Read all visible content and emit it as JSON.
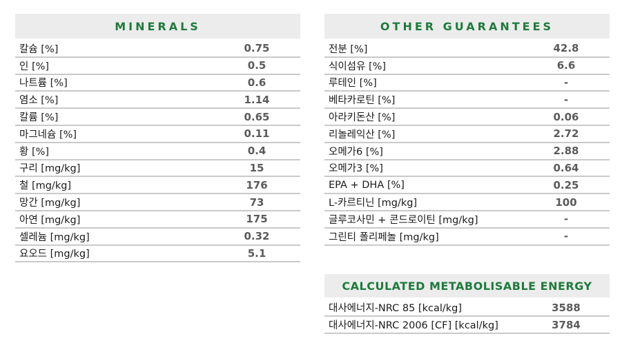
{
  "minerals": {
    "title": "MINERALS",
    "rows": [
      {
        "label": "칼슘 [%]",
        "value": "0.75"
      },
      {
        "label": "인 [%]",
        "value": "0.5"
      },
      {
        "label": "나트륨 [%]",
        "value": "0.6"
      },
      {
        "label": "염소 [%]",
        "value": "1.14"
      },
      {
        "label": "칼륨 [%]",
        "value": "0.65"
      },
      {
        "label": "마그네슘 [%]",
        "value": "0.11"
      },
      {
        "label": "황 [%]",
        "value": "0.4"
      },
      {
        "label": "구리 [mg/kg]",
        "value": "15"
      },
      {
        "label": "철 [mg/kg]",
        "value": "176"
      },
      {
        "label": "망간 [mg/kg]",
        "value": "73"
      },
      {
        "label": "아연 [mg/kg]",
        "value": "175"
      },
      {
        "label": "셀레늄 [mg/kg]",
        "value": "0.32"
      },
      {
        "label": "요오드 [mg/kg]",
        "value": "5.1"
      }
    ]
  },
  "other_guarantees": {
    "title": "OTHER GUARANTEES",
    "rows": [
      {
        "label": "전분 [%]",
        "value": "42.8"
      },
      {
        "label": "식이섬유 [%]",
        "value": "6.6"
      },
      {
        "label": "루테인 [%]",
        "value": "-"
      },
      {
        "label": "베타카로틴 [%]",
        "value": "-"
      },
      {
        "label": "아라키돈산 [%]",
        "value": "0.06"
      },
      {
        "label": "리놀레익산 [%]",
        "value": "2.72"
      },
      {
        "label": "오메가6 [%]",
        "value": "2.88"
      },
      {
        "label": "오메가3 [%]",
        "value": "0.64"
      },
      {
        "label": "EPA + DHA [%]",
        "value": "0.25"
      },
      {
        "label": "L-카르티닌 [mg/kg]",
        "value": "100"
      },
      {
        "label": "글루코사민 + 콘드로이틴 [mg/kg]",
        "value": "-"
      },
      {
        "label": "그린티 폴리페놀 [mg/kg]",
        "value": "-"
      }
    ]
  },
  "energy": {
    "title": "CALCULATED METABOLISABLE ENERGY",
    "rows": [
      {
        "label": "대사에너지-NRC 85 [kcal/kg]",
        "value": "3588"
      },
      {
        "label": "대사에너지-NRC 2006 [CF] [kcal/kg]",
        "value": "3784"
      }
    ]
  }
}
